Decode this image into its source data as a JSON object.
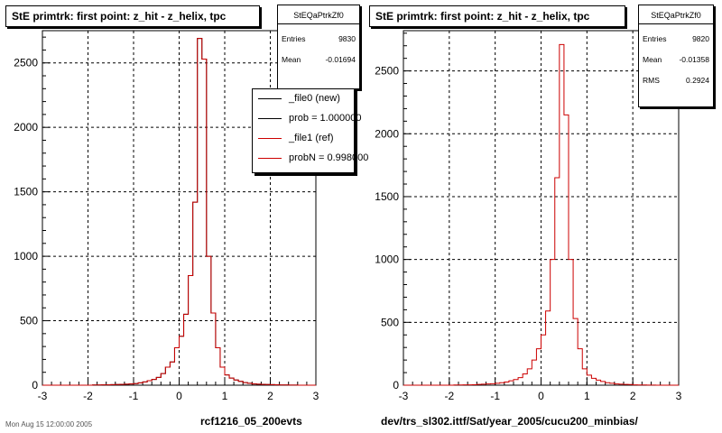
{
  "panels": [
    {
      "title": "StE primtrk: first point: z_hit - z_helix, tpc",
      "stats": {
        "name": "StEQaPtrkZf0",
        "rows": [
          {
            "label": "Entries",
            "value": "9830"
          },
          {
            "label": "Mean",
            "value": "-0.01694"
          }
        ]
      },
      "legend": [
        {
          "label": "_file0 (new)",
          "color": "#000000"
        },
        {
          "label": "prob = 1.000000",
          "color": "#000000"
        },
        {
          "label": "_file1 (ref)",
          "color": "#cc0000"
        },
        {
          "label": "probN = 0.998000",
          "color": "#cc0000"
        }
      ],
      "xcaption": "rcf1216_05_200evts"
    },
    {
      "title": "StE primtrk: first point: z_hit - z_helix, tpc",
      "stats": {
        "name": "StEQaPtrkZf0",
        "rows": [
          {
            "label": "Entries",
            "value": "9820"
          },
          {
            "label": "Mean",
            "value": "-0.01358"
          },
          {
            "label": "RMS",
            "value": "0.2924"
          }
        ]
      },
      "legend": [],
      "xcaption": "dev/trs_sl302.ittf/Sat/year_2005/cucu200_minbias/"
    }
  ],
  "footer": "Mon Aug 15 12:00:00 2005",
  "chart_data": [
    {
      "type": "histogram",
      "title": "StE primtrk: first point: z_hit - z_helix, tpc",
      "xlim": [
        -3,
        3
      ],
      "ylim": [
        0,
        2750
      ],
      "xticks": [
        -3,
        -2,
        -1,
        0,
        1,
        2,
        3
      ],
      "yticks": [
        0,
        500,
        1000,
        1500,
        2000,
        2500
      ],
      "grid": true,
      "bin_width": 0.1,
      "series": [
        {
          "name": "_file0 (new)",
          "color": "#000000",
          "values": [
            0,
            0,
            0,
            0,
            0,
            0,
            0,
            0,
            0,
            0,
            0,
            2,
            2,
            3,
            3,
            4,
            5,
            6,
            8,
            10,
            12,
            18,
            25,
            35,
            45,
            60,
            90,
            140,
            180,
            290,
            380,
            550,
            850,
            1420,
            2690,
            2530,
            1000,
            560,
            290,
            140,
            80,
            55,
            40,
            30,
            20,
            15,
            10,
            8,
            6,
            5,
            4,
            3,
            2,
            2,
            1,
            1,
            0,
            0,
            0,
            0
          ]
        },
        {
          "name": "_file1 (ref)",
          "color": "#cc0000",
          "values": [
            0,
            0,
            0,
            0,
            0,
            0,
            0,
            0,
            0,
            0,
            0,
            2,
            2,
            3,
            3,
            4,
            5,
            6,
            8,
            10,
            12,
            18,
            25,
            35,
            45,
            60,
            90,
            140,
            180,
            290,
            380,
            550,
            850,
            1420,
            2690,
            2530,
            1000,
            560,
            290,
            140,
            80,
            55,
            40,
            30,
            20,
            15,
            10,
            8,
            6,
            5,
            4,
            3,
            2,
            2,
            1,
            1,
            0,
            0,
            0,
            0
          ]
        }
      ]
    },
    {
      "type": "histogram",
      "title": "StE primtrk: first point: z_hit - z_helix, tpc",
      "xlim": [
        -3,
        3
      ],
      "ylim": [
        0,
        2820
      ],
      "xticks": [
        -3,
        -2,
        -1,
        0,
        1,
        2,
        3
      ],
      "yticks": [
        0,
        500,
        1000,
        1500,
        2000,
        2500
      ],
      "grid": true,
      "bin_width": 0.1,
      "series": [
        {
          "name": "",
          "color": "#cc0000",
          "values": [
            0,
            0,
            0,
            0,
            0,
            0,
            0,
            0,
            0,
            0,
            0,
            2,
            2,
            3,
            3,
            4,
            6,
            8,
            10,
            12,
            15,
            20,
            25,
            35,
            45,
            60,
            90,
            130,
            200,
            290,
            400,
            590,
            1000,
            1650,
            2710,
            2150,
            1000,
            530,
            290,
            130,
            80,
            55,
            40,
            30,
            20,
            15,
            10,
            8,
            6,
            5,
            3,
            2,
            2,
            1,
            1,
            0,
            0,
            0,
            0,
            0
          ]
        }
      ]
    }
  ]
}
